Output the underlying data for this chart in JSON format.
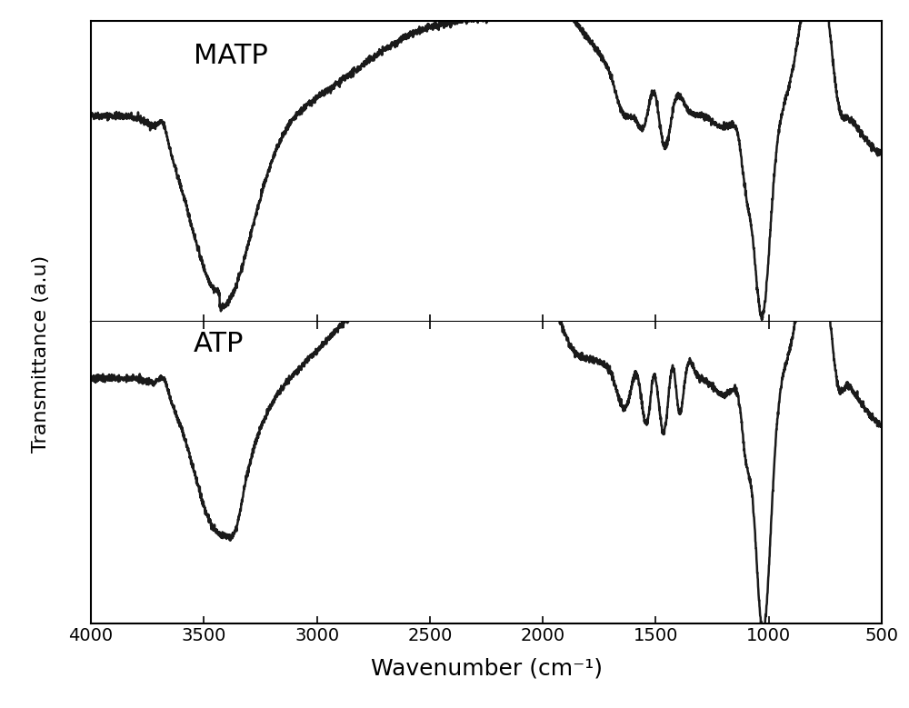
{
  "xlabel": "Wavenumber (cm⁻¹)",
  "ylabel": "Transmittance (a.u)",
  "xlim": [
    4000,
    500
  ],
  "labels": [
    "MATP",
    "ATP"
  ],
  "background_color": "#ffffff",
  "line_color": "#1a1a1a",
  "line_width": 1.8,
  "tick_positions": [
    4000,
    3500,
    3000,
    2500,
    2000,
    1500,
    1000,
    500
  ],
  "tick_labels": [
    "4000",
    "3500",
    "3000",
    "2500",
    "2000",
    "1500",
    "1000",
    "500"
  ],
  "xlabel_fontsize": 18,
  "ylabel_fontsize": 16,
  "label_fontsize": 22
}
